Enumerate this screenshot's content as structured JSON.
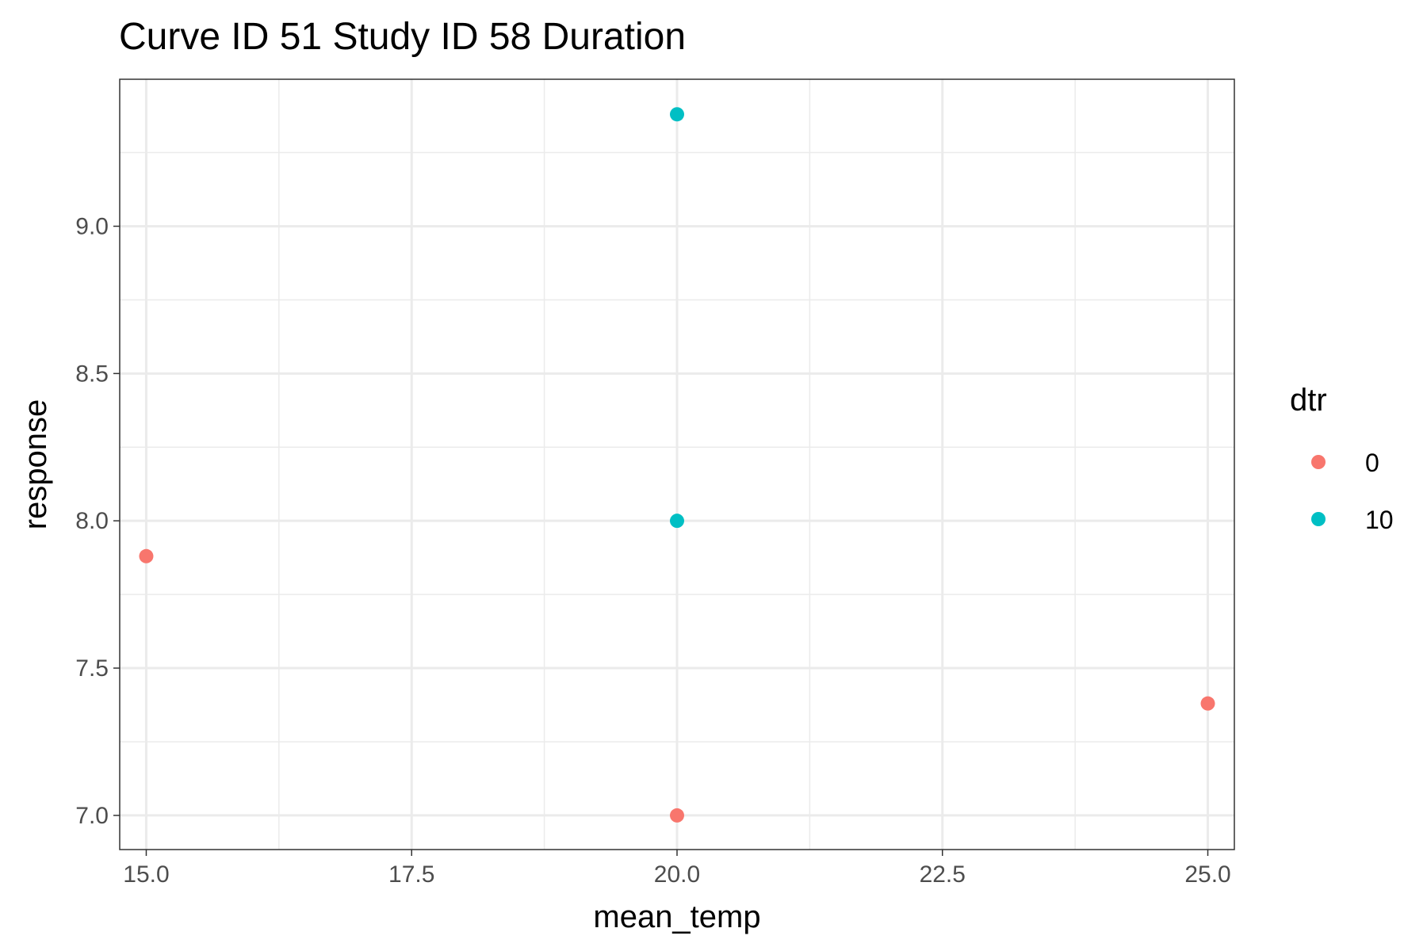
{
  "chart_data": {
    "type": "scatter",
    "title": "Curve ID 51 Study ID 58 Duration",
    "xlabel": "mean_temp",
    "ylabel": "response",
    "xlim": [
      14.75,
      25.25
    ],
    "ylim": [
      6.884,
      9.499
    ],
    "x_ticks": [
      15.0,
      17.5,
      20.0,
      22.5,
      25.0
    ],
    "x_tick_labels": [
      "15.0",
      "17.5",
      "20.0",
      "22.5",
      "25.0"
    ],
    "y_ticks": [
      7.0,
      7.5,
      8.0,
      8.5,
      9.0
    ],
    "y_tick_labels": [
      "7.0",
      "7.5",
      "8.0",
      "8.5",
      "9.0"
    ],
    "grid": true,
    "legend": {
      "title": "dtr",
      "placement": "right",
      "entries": [
        {
          "label": "0",
          "color": "#F8766D"
        },
        {
          "label": "10",
          "color": "#00BFC4"
        }
      ]
    },
    "series": [
      {
        "name": "0",
        "color": "#F8766D",
        "points": [
          [
            15.0,
            7.88
          ],
          [
            20.0,
            7.0
          ],
          [
            25.0,
            7.38
          ]
        ]
      },
      {
        "name": "10",
        "color": "#00BFC4",
        "points": [
          [
            20.0,
            9.38
          ],
          [
            20.0,
            8.0
          ]
        ]
      }
    ]
  }
}
